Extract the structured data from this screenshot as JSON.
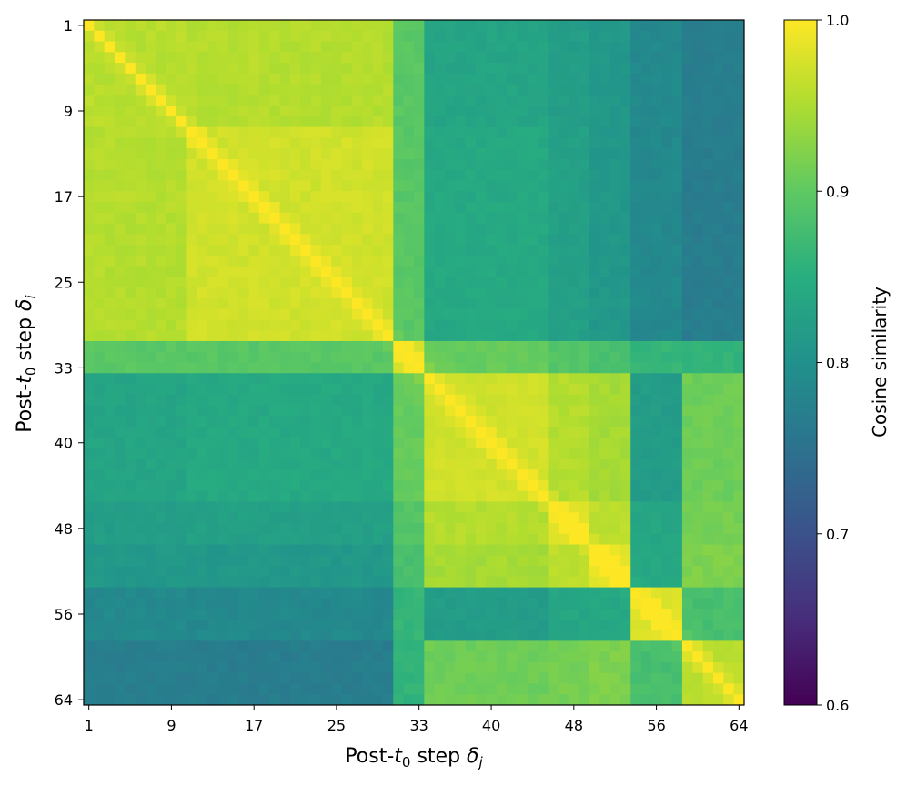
{
  "chart_data": {
    "type": "heatmap",
    "n": 64,
    "colormap": "viridis",
    "x_tick_labels": [
      "1",
      "9",
      "17",
      "25",
      "33",
      "40",
      "48",
      "56",
      "64"
    ],
    "y_tick_labels": [
      "1",
      "9",
      "17",
      "25",
      "33",
      "40",
      "48",
      "56",
      "64"
    ],
    "colorbar": {
      "label": "Cosine similarity",
      "range": [
        0.6,
        1.0
      ],
      "tick_labels": [
        "0.6",
        "0.7",
        "0.8",
        "0.9",
        "1.0"
      ]
    },
    "blocks": [
      [
        1,
        10
      ],
      [
        11,
        30
      ],
      [
        31,
        33
      ],
      [
        34,
        45
      ],
      [
        46,
        49
      ],
      [
        50,
        53
      ],
      [
        54,
        58
      ],
      [
        59,
        64
      ]
    ],
    "block_similarity": [
      [
        0.957,
        0.955,
        0.895,
        0.833,
        0.822,
        0.812,
        0.787,
        0.77
      ],
      [
        0.955,
        0.972,
        0.895,
        0.84,
        0.825,
        0.812,
        0.786,
        0.768
      ],
      [
        0.895,
        0.895,
        0.978,
        0.905,
        0.89,
        0.88,
        0.862,
        0.86
      ],
      [
        0.833,
        0.84,
        0.905,
        0.972,
        0.955,
        0.945,
        0.82,
        0.91
      ],
      [
        0.822,
        0.825,
        0.89,
        0.955,
        0.985,
        0.96,
        0.835,
        0.915
      ],
      [
        0.812,
        0.812,
        0.88,
        0.945,
        0.96,
        0.985,
        0.84,
        0.92
      ],
      [
        0.787,
        0.786,
        0.862,
        0.82,
        0.835,
        0.84,
        0.982,
        0.88
      ],
      [
        0.77,
        0.768,
        0.86,
        0.91,
        0.915,
        0.92,
        0.88,
        0.96
      ]
    ],
    "diagonal_value": 1.0
  },
  "axes": {
    "xlabel_prefix": "Post-",
    "xlabel_var": "t",
    "xlabel_sub": "0",
    "xlabel_mid": " step ",
    "xlabel_sym": "δ",
    "xlabel_sym_sub": "j",
    "ylabel_prefix": "Post-",
    "ylabel_var": "t",
    "ylabel_sub": "0",
    "ylabel_mid": " step ",
    "ylabel_sym": "δ",
    "ylabel_sym_sub": "i"
  }
}
